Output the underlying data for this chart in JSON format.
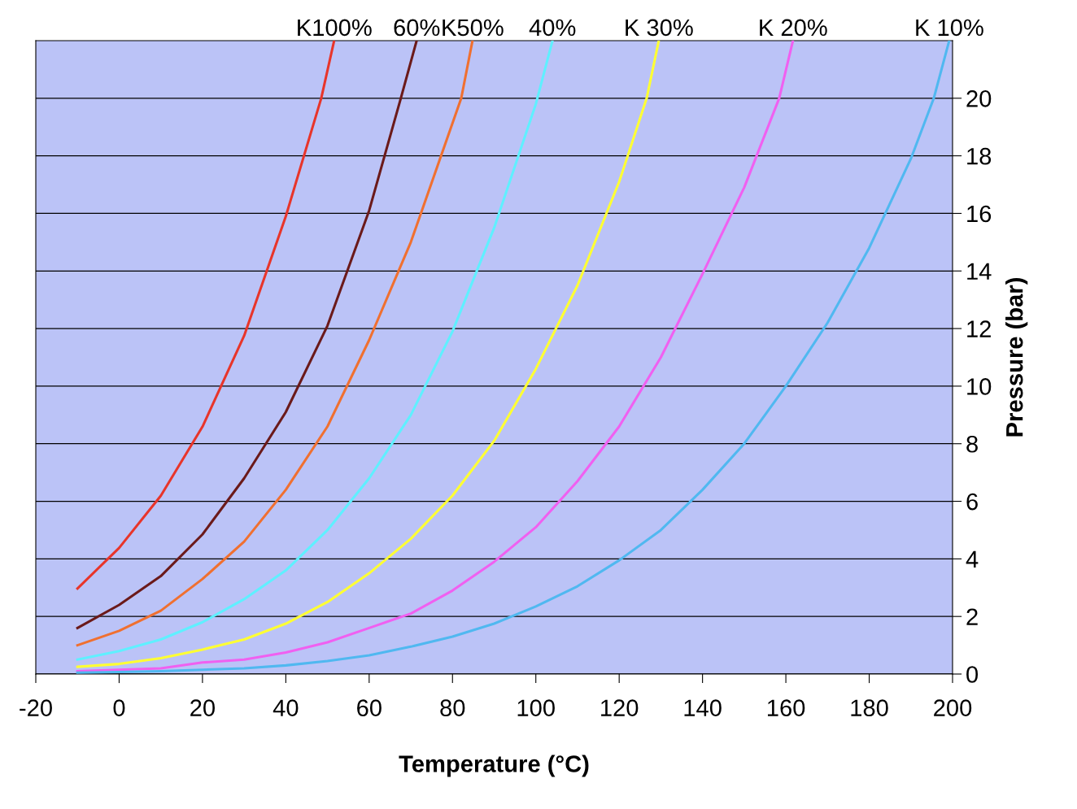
{
  "chart_data": {
    "type": "line",
    "xlabel": "Temperature (°C)",
    "ylabel": "Pressure (bar)",
    "xlim": [
      -20,
      200
    ],
    "xticks": [
      -20,
      0,
      20,
      40,
      60,
      80,
      100,
      120,
      140,
      160,
      180,
      200
    ],
    "ylim": [
      0,
      22
    ],
    "yticks": [
      0,
      2,
      4,
      6,
      8,
      10,
      12,
      14,
      16,
      18,
      20
    ],
    "grid": "y",
    "legend": false,
    "marker": "none",
    "line_style": "solid",
    "series": [
      {
        "name": "K100%",
        "color": "#e8352a",
        "x": [
          -10,
          0,
          10,
          20,
          30,
          40,
          48.5,
          51.6
        ],
        "values": [
          2.97,
          4.38,
          6.19,
          8.59,
          11.75,
          15.9,
          20,
          22
        ]
      },
      {
        "name": "60%",
        "color": "#6b1a1a",
        "x": [
          -10,
          0,
          10,
          20,
          30,
          40,
          50,
          60,
          67.6,
          71.4
        ],
        "values": [
          1.6,
          2.4,
          3.4,
          4.85,
          6.8,
          9.1,
          12.1,
          16.1,
          20,
          22
        ]
      },
      {
        "name": "K50%",
        "color": "#f07030",
        "x": [
          -10,
          0,
          10,
          20,
          30,
          40,
          50,
          60,
          70,
          82.1,
          84.8
        ],
        "values": [
          1.0,
          1.5,
          2.2,
          3.3,
          4.6,
          6.4,
          8.6,
          11.6,
          15.0,
          20,
          22
        ]
      },
      {
        "name": "40%",
        "color": "#5ff0ff",
        "x": [
          -10,
          0,
          10,
          20,
          30,
          40,
          50,
          60,
          70,
          80,
          90,
          100,
          104
        ],
        "values": [
          0.5,
          0.8,
          1.2,
          1.8,
          2.6,
          3.6,
          5.0,
          6.8,
          9.0,
          11.9,
          15.5,
          19.8,
          22
        ]
      },
      {
        "name": "K 30%",
        "color": "#ffff33",
        "x": [
          -10,
          0,
          10,
          20,
          30,
          40,
          50,
          60,
          70,
          80,
          90,
          100,
          110,
          120,
          126.6,
          129.5
        ],
        "values": [
          0.25,
          0.35,
          0.55,
          0.85,
          1.2,
          1.75,
          2.5,
          3.5,
          4.7,
          6.2,
          8.1,
          10.6,
          13.5,
          17.1,
          20,
          22
        ]
      },
      {
        "name": "K 20%",
        "color": "#f060f0",
        "x": [
          -10,
          0,
          10,
          20,
          30,
          40,
          50,
          60,
          70,
          80,
          90,
          100,
          110,
          120,
          130,
          140,
          150,
          158.4,
          161.7
        ],
        "values": [
          0.1,
          0.15,
          0.2,
          0.4,
          0.5,
          0.75,
          1.1,
          1.6,
          2.1,
          2.9,
          3.9,
          5.1,
          6.7,
          8.6,
          11.0,
          13.9,
          16.9,
          20,
          22
        ]
      },
      {
        "name": "K 10%",
        "color": "#50b8f0",
        "x": [
          -10,
          0,
          10,
          20,
          30,
          40,
          50,
          60,
          70,
          80,
          90,
          100,
          110,
          120,
          130,
          140,
          150,
          160,
          170,
          180,
          190,
          195.5,
          199.2
        ],
        "values": [
          0.05,
          0.07,
          0.1,
          0.15,
          0.2,
          0.3,
          0.45,
          0.65,
          0.95,
          1.3,
          1.75,
          2.35,
          3.05,
          3.95,
          5.0,
          6.4,
          8.0,
          10.0,
          12.2,
          14.8,
          17.9,
          20,
          22
        ]
      }
    ]
  }
}
